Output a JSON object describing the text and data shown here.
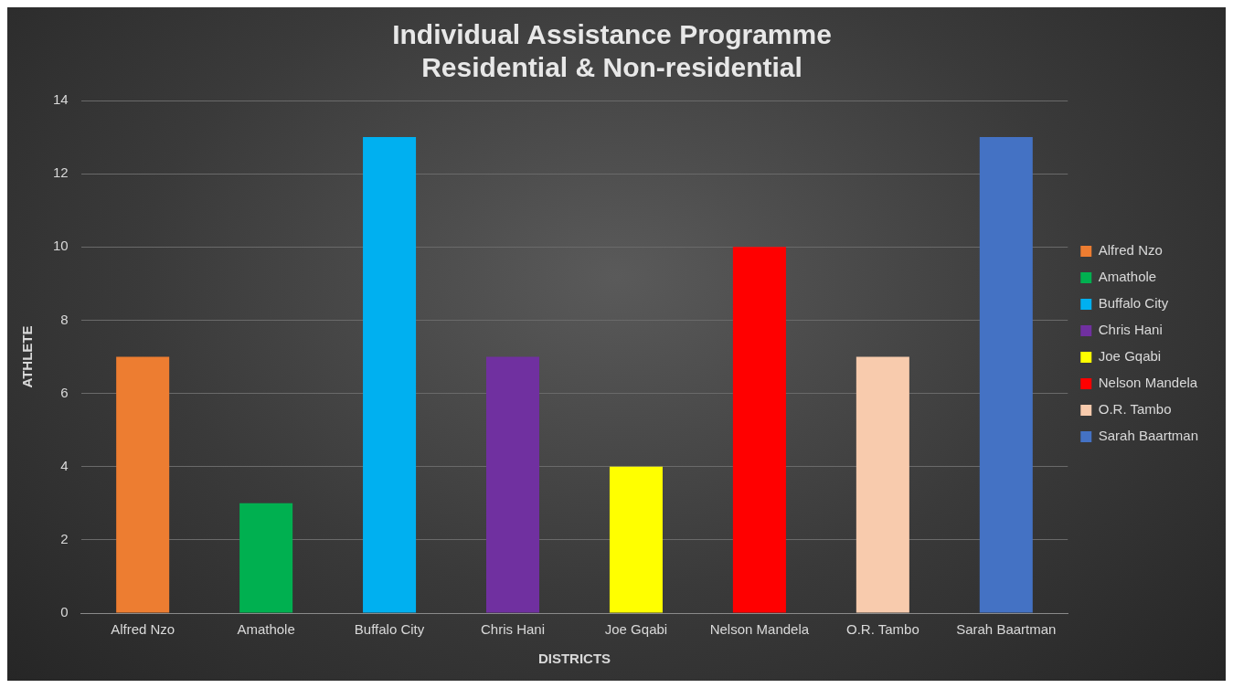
{
  "chart_data": {
    "type": "bar",
    "title": "Individual Assistance Programme\nResidential & Non-residential",
    "xlabel": "DISTRICTS",
    "ylabel": "ATHLETE",
    "categories": [
      "Alfred Nzo",
      "Amathole",
      "Buffalo City",
      "Chris Hani",
      "Joe Gqabi",
      "Nelson Mandela",
      "O.R. Tambo",
      "Sarah Baartman"
    ],
    "series": [
      {
        "name": "Alfred Nzo",
        "color": "#ed7d31",
        "values": [
          7,
          null,
          null,
          null,
          null,
          null,
          null,
          null
        ]
      },
      {
        "name": "Amathole",
        "color": "#00b050",
        "values": [
          null,
          3,
          null,
          null,
          null,
          null,
          null,
          null
        ]
      },
      {
        "name": "Buffalo City",
        "color": "#00b0f0",
        "values": [
          null,
          null,
          13,
          null,
          null,
          null,
          null,
          null
        ]
      },
      {
        "name": "Chris Hani",
        "color": "#7030a0",
        "values": [
          null,
          null,
          null,
          7,
          null,
          null,
          null,
          null
        ]
      },
      {
        "name": "Joe Gqabi",
        "color": "#ffff00",
        "values": [
          null,
          null,
          null,
          null,
          4,
          null,
          null,
          null
        ]
      },
      {
        "name": "Nelson Mandela",
        "color": "#ff0000",
        "values": [
          null,
          null,
          null,
          null,
          null,
          10,
          null,
          null
        ]
      },
      {
        "name": "O.R. Tambo",
        "color": "#f8cbad",
        "values": [
          null,
          null,
          null,
          null,
          null,
          null,
          7,
          null
        ]
      },
      {
        "name": "Sarah Baartman",
        "color": "#4472c4",
        "values": [
          null,
          null,
          null,
          null,
          null,
          null,
          null,
          13
        ]
      }
    ],
    "ylim": [
      0,
      14
    ],
    "yticks": [
      0,
      2,
      4,
      6,
      8,
      10,
      12,
      14
    ],
    "grid": "y",
    "legend": "right"
  }
}
